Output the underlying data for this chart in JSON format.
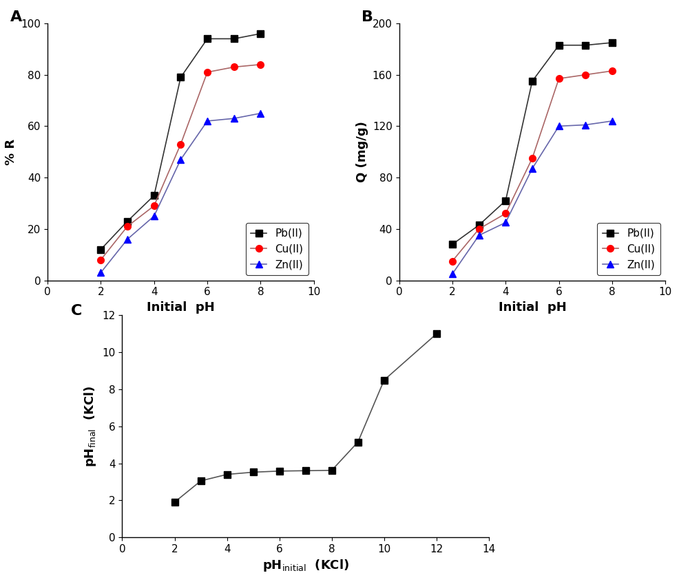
{
  "A": {
    "title": "A",
    "xlabel": "Initial  pH",
    "ylabel": "% R",
    "xlim": [
      0,
      10
    ],
    "ylim": [
      0,
      100
    ],
    "xticks": [
      0,
      2,
      4,
      6,
      8,
      10
    ],
    "yticks": [
      0,
      20,
      40,
      60,
      80,
      100
    ],
    "series": {
      "Pb(II)": {
        "x": [
          2,
          3,
          4,
          5,
          6,
          7,
          8
        ],
        "y": [
          12,
          23,
          33,
          79,
          94,
          94,
          96
        ],
        "color": "#333333",
        "marker": "s",
        "markercolor": "black"
      },
      "Cu(II)": {
        "x": [
          2,
          3,
          4,
          5,
          6,
          7,
          8
        ],
        "y": [
          8,
          21,
          29,
          53,
          81,
          83,
          84
        ],
        "color": "#aa6666",
        "marker": "o",
        "markercolor": "red"
      },
      "Zn(II)": {
        "x": [
          2,
          3,
          4,
          5,
          6,
          7,
          8
        ],
        "y": [
          3,
          16,
          25,
          47,
          62,
          63,
          65
        ],
        "color": "#6666aa",
        "marker": "^",
        "markercolor": "blue"
      }
    }
  },
  "B": {
    "title": "B",
    "xlabel": "Initial  pH",
    "ylabel": "Q (mg/g)",
    "xlim": [
      0,
      10
    ],
    "ylim": [
      0,
      200
    ],
    "xticks": [
      0,
      2,
      4,
      6,
      8,
      10
    ],
    "yticks": [
      0,
      40,
      80,
      120,
      160,
      200
    ],
    "series": {
      "Pb(II)": {
        "x": [
          2,
          3,
          4,
          5,
          6,
          7,
          8
        ],
        "y": [
          28,
          43,
          62,
          155,
          183,
          183,
          185
        ],
        "color": "#333333",
        "marker": "s",
        "markercolor": "black"
      },
      "Cu(II)": {
        "x": [
          2,
          3,
          4,
          5,
          6,
          7,
          8
        ],
        "y": [
          15,
          40,
          52,
          95,
          157,
          160,
          163
        ],
        "color": "#aa6666",
        "marker": "o",
        "markercolor": "red"
      },
      "Zn(II)": {
        "x": [
          2,
          3,
          4,
          5,
          6,
          7,
          8
        ],
        "y": [
          5,
          35,
          45,
          87,
          120,
          121,
          124
        ],
        "color": "#6666aa",
        "marker": "^",
        "markercolor": "blue"
      }
    }
  },
  "C": {
    "title": "C",
    "xlabel": "pH$_{\\mathrm{initial}}$  (KCl)",
    "ylabel": "pH$_{\\mathrm{final}}$  (KCl)",
    "xlim": [
      0,
      14
    ],
    "ylim": [
      0,
      12
    ],
    "xticks": [
      0,
      2,
      4,
      6,
      8,
      10,
      12,
      14
    ],
    "yticks": [
      0,
      2,
      4,
      6,
      8,
      10,
      12
    ],
    "x": [
      2,
      3,
      4,
      5,
      6,
      7,
      8,
      9,
      10,
      12
    ],
    "y": [
      1.9,
      3.05,
      3.4,
      3.52,
      3.58,
      3.6,
      3.62,
      5.15,
      8.5,
      11.0
    ],
    "color": "#555555",
    "markercolor": "black",
    "marker": "s"
  }
}
